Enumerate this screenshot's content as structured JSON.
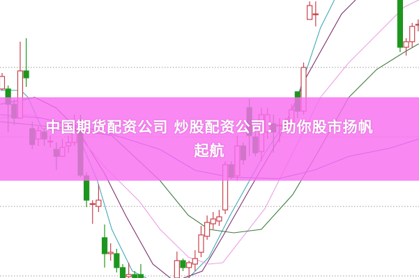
{
  "banner": {
    "line1": "中国期货配资公司 炒股配资公司：助你股市扬帆",
    "line2": "起航",
    "color": "#f86ef0"
  },
  "chart_data": {
    "type": "candlestick",
    "xlim": [
      -0.5,
      69.2
    ],
    "ylim": [
      0,
      400
    ],
    "grid": true,
    "grid_levels": [
      303,
      203,
      103,
      3
    ],
    "colors": {
      "up": "#c8404a",
      "down": "#1e961e",
      "grid": "#999999"
    },
    "candles": [
      {
        "i": 0,
        "o": 272,
        "h": 295,
        "l": 270,
        "c": 290
      },
      {
        "i": 1,
        "o": 272,
        "h": 277,
        "l": 210,
        "c": 250
      },
      {
        "i": 2,
        "o": 250,
        "h": 257,
        "l": 220,
        "c": 230
      },
      {
        "i": 3,
        "o": 230,
        "h": 340,
        "l": 230,
        "c": 298
      },
      {
        "i": 4,
        "o": 298,
        "h": 345,
        "l": 275,
        "c": 288
      },
      {
        "i": 5,
        "o": 215,
        "h": 225,
        "l": 185,
        "c": 192
      },
      {
        "i": 6,
        "o": 200,
        "h": 218,
        "l": 190,
        "c": 212
      },
      {
        "i": 7,
        "o": 210,
        "h": 215,
        "l": 190,
        "c": 200
      },
      {
        "i": 8,
        "o": 197,
        "h": 205,
        "l": 188,
        "c": 197
      },
      {
        "i": 9,
        "o": 185,
        "h": 195,
        "l": 155,
        "c": 175
      },
      {
        "i": 10,
        "o": 175,
        "h": 200,
        "l": 175,
        "c": 188
      },
      {
        "i": 11,
        "o": 190,
        "h": 205,
        "l": 180,
        "c": 195
      },
      {
        "i": 12,
        "o": 195,
        "h": 235,
        "l": 190,
        "c": 212
      },
      {
        "i": 13,
        "o": 212,
        "h": 235,
        "l": 145,
        "c": 148
      },
      {
        "i": 14,
        "o": 147,
        "h": 152,
        "l": 102,
        "c": 112
      },
      {
        "i": 15,
        "o": 107,
        "h": 112,
        "l": 78,
        "c": 107
      },
      {
        "i": 16,
        "o": 103,
        "h": 135,
        "l": 95,
        "c": 112
      },
      {
        "i": 17,
        "o": 58,
        "h": 77,
        "l": 15,
        "c": 35
      },
      {
        "i": 18,
        "o": 35,
        "h": 50,
        "l": 25,
        "c": 37
      },
      {
        "i": 19,
        "o": 35,
        "h": 42,
        "l": 8,
        "c": 15
      },
      {
        "i": 20,
        "o": 15,
        "h": 20,
        "l": -5,
        "c": 0
      },
      {
        "i": 21,
        "o": 2,
        "h": 22,
        "l": -5,
        "c": 5
      },
      {
        "i": 22,
        "o": 5,
        "h": 10,
        "l": -5,
        "c": 0
      },
      {
        "i": 23,
        "o": 5,
        "h": 20,
        "l": -10,
        "c": -5
      },
      {
        "i": 29,
        "o": 0,
        "h": 38,
        "l": -5,
        "c": 25
      },
      {
        "i": 30,
        "o": 25,
        "h": 28,
        "l": 10,
        "c": 15
      },
      {
        "i": 31,
        "o": 15,
        "h": 25,
        "l": 0,
        "c": 22
      },
      {
        "i": 32,
        "o": 20,
        "h": 40,
        "l": 10,
        "c": 28
      },
      {
        "i": 33,
        "o": 37,
        "h": 75,
        "l": 30,
        "c": 62
      },
      {
        "i": 34,
        "o": 60,
        "h": 90,
        "l": 55,
        "c": 80
      },
      {
        "i": 35,
        "o": 78,
        "h": 95,
        "l": 70,
        "c": 85
      },
      {
        "i": 36,
        "o": 82,
        "h": 98,
        "l": 75,
        "c": 88
      },
      {
        "i": 37,
        "o": 98,
        "h": 168,
        "l": 92,
        "c": 163
      },
      {
        "i": 38,
        "o": 163,
        "h": 168,
        "l": 142,
        "c": 145
      },
      {
        "i": 39,
        "o": 147,
        "h": 205,
        "l": 140,
        "c": 190
      },
      {
        "i": 40,
        "o": 190,
        "h": 195,
        "l": 163,
        "c": 170
      },
      {
        "i": 41,
        "o": 245,
        "h": 258,
        "l": 175,
        "c": 205
      },
      {
        "i": 42,
        "o": 203,
        "h": 210,
        "l": 175,
        "c": 180
      },
      {
        "i": 43,
        "o": 182,
        "h": 245,
        "l": 168,
        "c": 235
      },
      {
        "i": 44,
        "o": 210,
        "h": 245,
        "l": 200,
        "c": 235
      },
      {
        "i": 45,
        "o": 222,
        "h": 235,
        "l": 180,
        "c": 210
      },
      {
        "i": 46,
        "o": 220,
        "h": 230,
        "l": 195,
        "c": 220
      },
      {
        "i": 47,
        "o": 222,
        "h": 230,
        "l": 210,
        "c": 222
      },
      {
        "i": 48,
        "o": 220,
        "h": 250,
        "l": 215,
        "c": 242
      },
      {
        "i": 49,
        "o": 268,
        "h": 268,
        "l": 230,
        "c": 240
      },
      {
        "i": 50,
        "o": 240,
        "h": 310,
        "l": 235,
        "c": 303
      },
      {
        "i": 51,
        "o": 372,
        "h": 398,
        "l": 372,
        "c": 392
      },
      {
        "i": 52,
        "o": 380,
        "h": 398,
        "l": 362,
        "c": 380
      },
      {
        "i": 66,
        "o": 400,
        "h": 400,
        "l": 325,
        "c": 332
      },
      {
        "i": 67,
        "o": 332,
        "h": 345,
        "l": 320,
        "c": 340
      },
      {
        "i": 68,
        "o": 340,
        "h": 367,
        "l": 332,
        "c": 362
      },
      {
        "i": 69,
        "o": 365,
        "h": 372,
        "l": 355,
        "c": 365
      }
    ],
    "moving_averages": [
      {
        "color": "#3fa9b8",
        "points": [
          [
            -0.3,
            270
          ],
          [
            3.1,
            270
          ],
          [
            4.3,
            260
          ],
          [
            6.6,
            215
          ],
          [
            12.4,
            210
          ],
          [
            15.8,
            140
          ],
          [
            18.2,
            70
          ],
          [
            21.6,
            10
          ],
          [
            26.2,
            -10
          ],
          [
            30.9,
            0
          ],
          [
            34.3,
            30
          ],
          [
            37.8,
            90
          ],
          [
            43.6,
            180
          ],
          [
            48.2,
            240
          ],
          [
            52.8,
            360
          ],
          [
            55.1,
            400
          ]
        ]
      },
      {
        "color": "#7a2f6e",
        "points": [
          [
            -0.3,
            250
          ],
          [
            4.3,
            258
          ],
          [
            5.4,
            260
          ],
          [
            8.9,
            245
          ],
          [
            12.4,
            215
          ],
          [
            17,
            150
          ],
          [
            20.5,
            90
          ],
          [
            25,
            20
          ],
          [
            28.6,
            -5
          ],
          [
            33.2,
            10
          ],
          [
            36.6,
            60
          ],
          [
            41.2,
            130
          ],
          [
            45.9,
            200
          ],
          [
            50.5,
            290
          ],
          [
            56.3,
            380
          ],
          [
            58.6,
            400
          ]
        ]
      },
      {
        "color": "#e8a0e4",
        "points": [
          [
            -0.3,
            230
          ],
          [
            4.3,
            235
          ],
          [
            11.2,
            220
          ],
          [
            17,
            160
          ],
          [
            22.8,
            110
          ],
          [
            26.2,
            70
          ],
          [
            30.9,
            30
          ],
          [
            34.3,
            20
          ],
          [
            36.6,
            22
          ],
          [
            43.6,
            100
          ],
          [
            48.2,
            180
          ],
          [
            52.8,
            260
          ],
          [
            57.5,
            310
          ],
          [
            62.1,
            350
          ],
          [
            66.7,
            390
          ],
          [
            69.1,
            400
          ]
        ]
      },
      {
        "color": "#3d7a3d",
        "points": [
          [
            -0.3,
            225
          ],
          [
            11.2,
            215
          ],
          [
            18.2,
            205
          ],
          [
            26.2,
            140
          ],
          [
            30.9,
            90
          ],
          [
            34.3,
            70
          ],
          [
            38.4,
            65
          ],
          [
            43,
            70
          ],
          [
            48.2,
            120
          ],
          [
            52.3,
            180
          ],
          [
            57.5,
            260
          ],
          [
            62.1,
            300
          ],
          [
            66.7,
            325
          ],
          [
            69.1,
            337
          ]
        ]
      },
      {
        "color": "#7e55b8",
        "points": [
          [
            -0.3,
            235
          ],
          [
            6.6,
            230
          ],
          [
            17,
            210
          ],
          [
            26.2,
            185
          ],
          [
            32,
            155
          ],
          [
            37.8,
            145
          ],
          [
            45.9,
            143
          ],
          [
            51.7,
            155
          ],
          [
            57.5,
            175
          ],
          [
            64.4,
            187
          ],
          [
            69.1,
            200
          ]
        ]
      }
    ]
  }
}
